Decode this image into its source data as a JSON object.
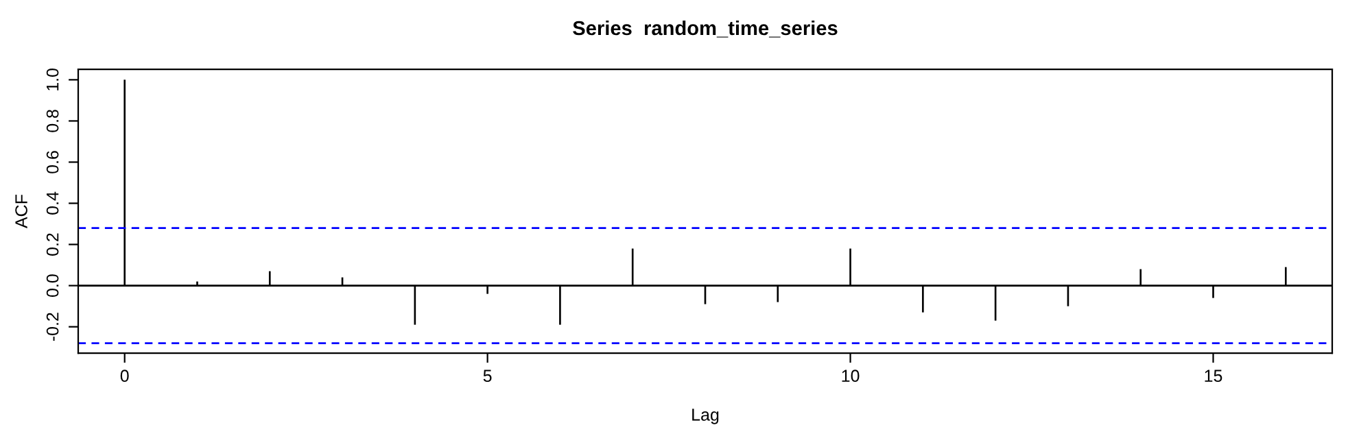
{
  "chart_data": {
    "type": "bar",
    "title": "Series  random_time_series",
    "xlabel": "Lag",
    "ylabel": "ACF",
    "x": [
      0,
      1,
      2,
      3,
      4,
      5,
      6,
      7,
      8,
      9,
      10,
      11,
      12,
      13,
      14,
      15,
      16
    ],
    "series": [
      {
        "color": "#000000",
        "values": [
          1.0,
          0.02,
          0.07,
          0.04,
          -0.19,
          -0.04,
          -0.19,
          0.18,
          -0.09,
          -0.08,
          0.18,
          -0.13,
          -0.17,
          -0.1,
          0.08,
          -0.06,
          0.09
        ]
      }
    ],
    "xlim": [
      -0.64,
      16.64
    ],
    "ylim": [
      -0.328,
      1.051
    ],
    "xticks": [
      0,
      5,
      10,
      15
    ],
    "yticks": [
      {
        "value": -0.2,
        "label": "-0.2"
      },
      {
        "value": 0.0,
        "label": "0.0"
      },
      {
        "value": 0.2,
        "label": "0.2"
      },
      {
        "value": 0.4,
        "label": "0.4"
      },
      {
        "value": 0.6,
        "label": "0.6"
      },
      {
        "value": 0.8,
        "label": "0.8"
      },
      {
        "value": 1.0,
        "label": "1.0"
      }
    ],
    "ref_lines": [
      {
        "axis": "y",
        "value": 0,
        "color": "#000000",
        "line_style": "solid"
      },
      {
        "axis": "y",
        "value": 0.28,
        "color": "#0000ff",
        "line_style": "dashed"
      },
      {
        "axis": "y",
        "value": -0.28,
        "color": "#0000ff",
        "line_style": "dashed"
      }
    ],
    "grid": false,
    "legend": false
  }
}
